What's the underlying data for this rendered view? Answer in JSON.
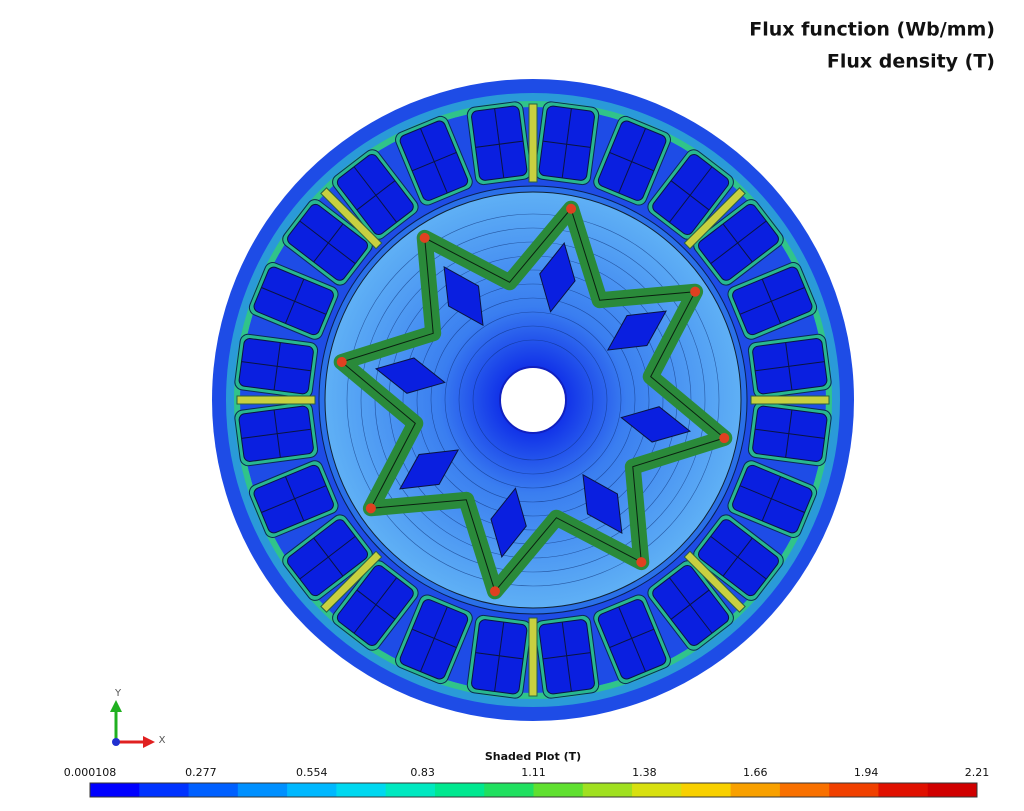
{
  "header": {
    "lines": [
      "Flux function (Wb/mm)",
      "Flux density (T)"
    ]
  },
  "triad": {
    "y_label": "Y",
    "x_label": "X"
  },
  "legend": {
    "title": "Shaded Plot (T)",
    "ticks": [
      "0.000108",
      "0.277",
      "0.554",
      "0.83",
      "1.11",
      "1.38",
      "1.66",
      "1.94",
      "2.21"
    ]
  }
}
